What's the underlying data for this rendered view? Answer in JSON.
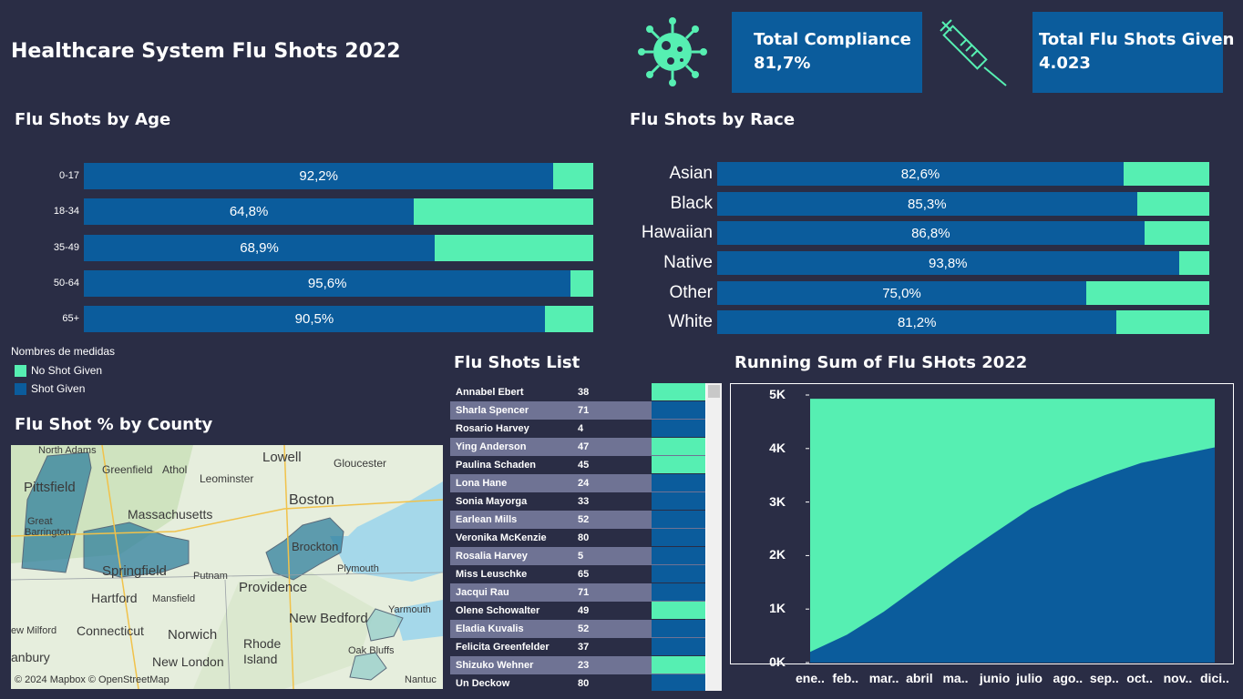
{
  "header": {
    "title": "Healthcare System Flu Shots 2022",
    "kpis": [
      {
        "label": "Total Compliance",
        "value": "81,7%"
      },
      {
        "label": "Total Flu Shots Given",
        "value": "4.023"
      }
    ],
    "icons": [
      "virus-icon",
      "syringe-icon"
    ]
  },
  "colors": {
    "shot_given": "#0b5c9c",
    "no_shot": "#56efb2",
    "background": "#2a2d45"
  },
  "age_section": {
    "title": "Flu Shots by Age",
    "rows": [
      {
        "label": "0-17",
        "pct": 92.2,
        "text": "92,2%"
      },
      {
        "label": "18-34",
        "pct": 64.8,
        "text": "64,8%"
      },
      {
        "label": "35-49",
        "pct": 68.9,
        "text": "68,9%"
      },
      {
        "label": "50-64",
        "pct": 95.6,
        "text": "95,6%"
      },
      {
        "label": "65+",
        "pct": 90.5,
        "text": "90,5%"
      }
    ]
  },
  "race_section": {
    "title": "Flu Shots by Race",
    "rows": [
      {
        "label": "Asian",
        "pct": 82.6,
        "text": "82,6%"
      },
      {
        "label": "Black",
        "pct": 85.3,
        "text": "85,3%"
      },
      {
        "label": "Hawaiian",
        "pct": 86.8,
        "text": "86,8%"
      },
      {
        "label": "Native",
        "pct": 93.8,
        "text": "93,8%"
      },
      {
        "label": "Other",
        "pct": 75.0,
        "text": "75,0%"
      },
      {
        "label": "White",
        "pct": 81.2,
        "text": "81,2%"
      }
    ]
  },
  "legend": {
    "title": "Nombres de medidas",
    "items": [
      {
        "label": "No Shot Given",
        "color": "#56efb2"
      },
      {
        "label": "Shot Given",
        "color": "#0b5c9c"
      }
    ]
  },
  "map": {
    "title": "Flu Shot % by County",
    "attribution": "© 2024 Mapbox © OpenStreetMap",
    "labels": [
      "North Adams",
      "Greenfield",
      "Athol",
      "Lowell",
      "Gloucester",
      "Leominster",
      "Pittsfield",
      "Massachusetts",
      "Boston",
      "Great",
      "Barrington",
      "Springfield",
      "Brockton",
      "Plymouth",
      "Putnam",
      "Hartford",
      "Mansfield",
      "Providence",
      "Yarmouth",
      "Connecticut",
      "Norwich",
      "New Bedford",
      "Rhode",
      "Island",
      "ew Milford",
      "New London",
      "Oak Bluffs",
      "anbury",
      "Nantuc"
    ]
  },
  "list": {
    "title": "Flu Shots List",
    "rows": [
      {
        "name": "Annabel Ebert",
        "age": "38",
        "shot": false
      },
      {
        "name": "Sharla Spencer",
        "age": "71",
        "shot": true
      },
      {
        "name": "Rosario Harvey",
        "age": "4",
        "shot": true
      },
      {
        "name": "Ying Anderson",
        "age": "47",
        "shot": false
      },
      {
        "name": "Paulina Schaden",
        "age": "45",
        "shot": false
      },
      {
        "name": "Lona Hane",
        "age": "24",
        "shot": true
      },
      {
        "name": "Sonia Mayorga",
        "age": "33",
        "shot": true
      },
      {
        "name": "Earlean Mills",
        "age": "52",
        "shot": true
      },
      {
        "name": "Veronika McKenzie",
        "age": "80",
        "shot": true
      },
      {
        "name": "Rosalia Harvey",
        "age": "5",
        "shot": true
      },
      {
        "name": "Miss Leuschke",
        "age": "65",
        "shot": true
      },
      {
        "name": "Jacqui Rau",
        "age": "71",
        "shot": true
      },
      {
        "name": "Olene Schowalter",
        "age": "49",
        "shot": false
      },
      {
        "name": "Eladia Kuvalis",
        "age": "52",
        "shot": true
      },
      {
        "name": "Felicita Greenfelder",
        "age": "37",
        "shot": true
      },
      {
        "name": "Shizuko Wehner",
        "age": "23",
        "shot": false
      },
      {
        "name": "Un Deckow",
        "age": "80",
        "shot": true
      }
    ]
  },
  "chart_data": {
    "type": "area",
    "title": "Running Sum of Flu SHots 2022",
    "categories": [
      "ene..",
      "feb..",
      "mar..",
      "abril",
      "ma..",
      "junio",
      "julio",
      "ago..",
      "sep..",
      "oct..",
      "nov..",
      "dici.."
    ],
    "y_ticks": [
      "0K",
      "1K",
      "2K",
      "3K",
      "4K",
      "5K"
    ],
    "ylim": [
      0,
      5000
    ],
    "series": [
      {
        "name": "Shot Given",
        "values": [
          200,
          520,
          950,
          1450,
          1950,
          2420,
          2880,
          3230,
          3500,
          3730,
          3880,
          4023
        ]
      },
      {
        "name": "No Shot Given",
        "values": [
          4930,
          4930,
          4930,
          4930,
          4930,
          4930,
          4930,
          4930,
          4930,
          4930,
          4930,
          4930
        ]
      }
    ]
  }
}
